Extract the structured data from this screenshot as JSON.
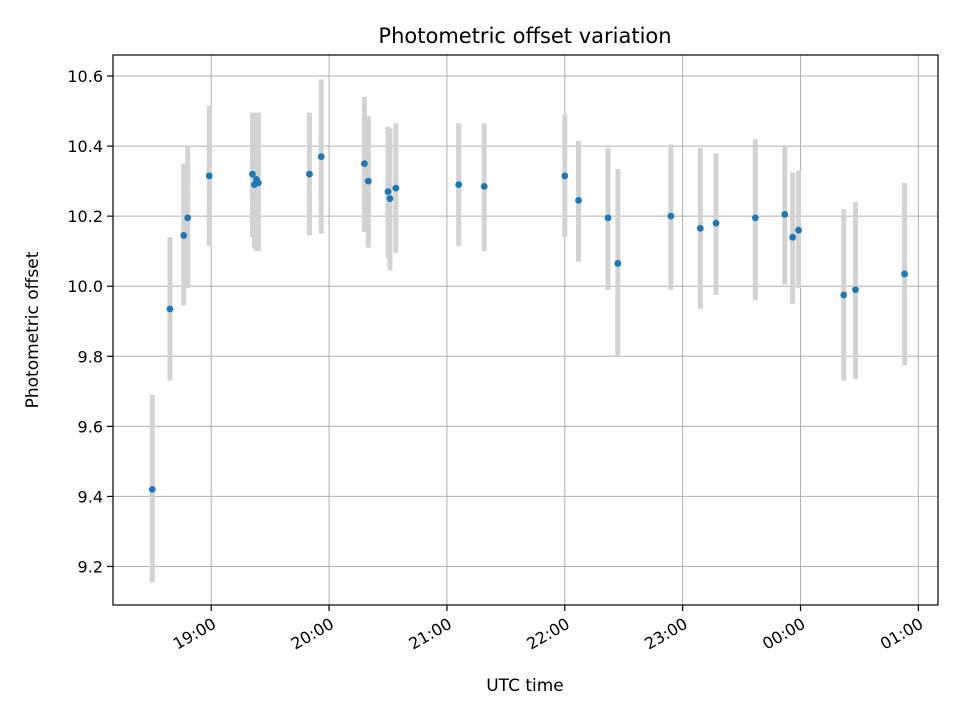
{
  "chart_data": {
    "type": "scatter",
    "title": "Photometric offset variation",
    "xlabel": "UTC time",
    "ylabel": "Photometric offset",
    "x_scale": "time",
    "xlim": [
      "18:10",
      "01:10"
    ],
    "ylim": [
      9.09,
      10.66
    ],
    "grid": true,
    "x_ticks": [
      {
        "time": "19:00",
        "label": "19:00"
      },
      {
        "time": "20:00",
        "label": "20:00"
      },
      {
        "time": "21:00",
        "label": "21:00"
      },
      {
        "time": "22:00",
        "label": "22:00"
      },
      {
        "time": "23:00",
        "label": "23:00"
      },
      {
        "time": "00:00",
        "label": "00:00"
      },
      {
        "time": "01:00",
        "label": "01:00"
      }
    ],
    "y_ticks": [
      {
        "value": 9.2,
        "label": "9.2"
      },
      {
        "value": 9.4,
        "label": "9.4"
      },
      {
        "value": 9.6,
        "label": "9.6"
      },
      {
        "value": 9.8,
        "label": "9.8"
      },
      {
        "value": 10.0,
        "label": "10.0"
      },
      {
        "value": 10.2,
        "label": "10.2"
      },
      {
        "value": 10.4,
        "label": "10.4"
      },
      {
        "value": 10.6,
        "label": "10.6"
      }
    ],
    "point_color": "#1f77b4",
    "errorbar_color": "#d3d3d3",
    "points": [
      {
        "time": "18:30",
        "y": 9.42,
        "ylow": 9.155,
        "yhigh": 9.69
      },
      {
        "time": "18:39",
        "y": 9.935,
        "ylow": 9.73,
        "yhigh": 10.14
      },
      {
        "time": "18:46",
        "y": 10.145,
        "ylow": 9.945,
        "yhigh": 10.35
      },
      {
        "time": "18:48",
        "y": 10.195,
        "ylow": 9.995,
        "yhigh": 10.4
      },
      {
        "time": "18:59",
        "y": 10.315,
        "ylow": 10.115,
        "yhigh": 10.515
      },
      {
        "time": "19:21",
        "y": 10.32,
        "ylow": 10.14,
        "yhigh": 10.495
      },
      {
        "time": "19:22",
        "y": 10.29,
        "ylow": 10.11,
        "yhigh": 10.495
      },
      {
        "time": "19:23",
        "y": 10.305,
        "ylow": 10.1,
        "yhigh": 10.495
      },
      {
        "time": "19:24",
        "y": 10.295,
        "ylow": 10.1,
        "yhigh": 10.495
      },
      {
        "time": "19:50",
        "y": 10.32,
        "ylow": 10.145,
        "yhigh": 10.495
      },
      {
        "time": "19:56",
        "y": 10.37,
        "ylow": 10.15,
        "yhigh": 10.59
      },
      {
        "time": "20:18",
        "y": 10.35,
        "ylow": 10.155,
        "yhigh": 10.54
      },
      {
        "time": "20:20",
        "y": 10.3,
        "ylow": 10.11,
        "yhigh": 10.485
      },
      {
        "time": "20:30",
        "y": 10.27,
        "ylow": 10.08,
        "yhigh": 10.455
      },
      {
        "time": "20:31",
        "y": 10.25,
        "ylow": 10.045,
        "yhigh": 10.45
      },
      {
        "time": "20:34",
        "y": 10.28,
        "ylow": 10.095,
        "yhigh": 10.465
      },
      {
        "time": "21:06",
        "y": 10.29,
        "ylow": 10.115,
        "yhigh": 10.465
      },
      {
        "time": "21:19",
        "y": 10.285,
        "ylow": 10.1,
        "yhigh": 10.465
      },
      {
        "time": "22:00",
        "y": 10.315,
        "ylow": 10.14,
        "yhigh": 10.49
      },
      {
        "time": "22:07",
        "y": 10.245,
        "ylow": 10.07,
        "yhigh": 10.415
      },
      {
        "time": "22:22",
        "y": 10.195,
        "ylow": 9.99,
        "yhigh": 10.395
      },
      {
        "time": "22:27",
        "y": 10.065,
        "ylow": 9.8,
        "yhigh": 10.335
      },
      {
        "time": "22:54",
        "y": 10.2,
        "ylow": 9.99,
        "yhigh": 10.405
      },
      {
        "time": "23:09",
        "y": 10.165,
        "ylow": 9.935,
        "yhigh": 10.395
      },
      {
        "time": "23:17",
        "y": 10.18,
        "ylow": 9.975,
        "yhigh": 10.38
      },
      {
        "time": "23:37",
        "y": 10.195,
        "ylow": 9.96,
        "yhigh": 10.42
      },
      {
        "time": "23:52",
        "y": 10.205,
        "ylow": 10.005,
        "yhigh": 10.4
      },
      {
        "time": "23:56",
        "y": 10.14,
        "ylow": 9.95,
        "yhigh": 10.325
      },
      {
        "time": "23:59",
        "y": 10.16,
        "ylow": 9.995,
        "yhigh": 10.33
      },
      {
        "time": "00:22",
        "y": 9.975,
        "ylow": 9.73,
        "yhigh": 10.22
      },
      {
        "time": "00:28",
        "y": 9.99,
        "ylow": 9.735,
        "yhigh": 10.24
      },
      {
        "time": "00:53",
        "y": 10.035,
        "ylow": 9.775,
        "yhigh": 10.295
      }
    ]
  }
}
